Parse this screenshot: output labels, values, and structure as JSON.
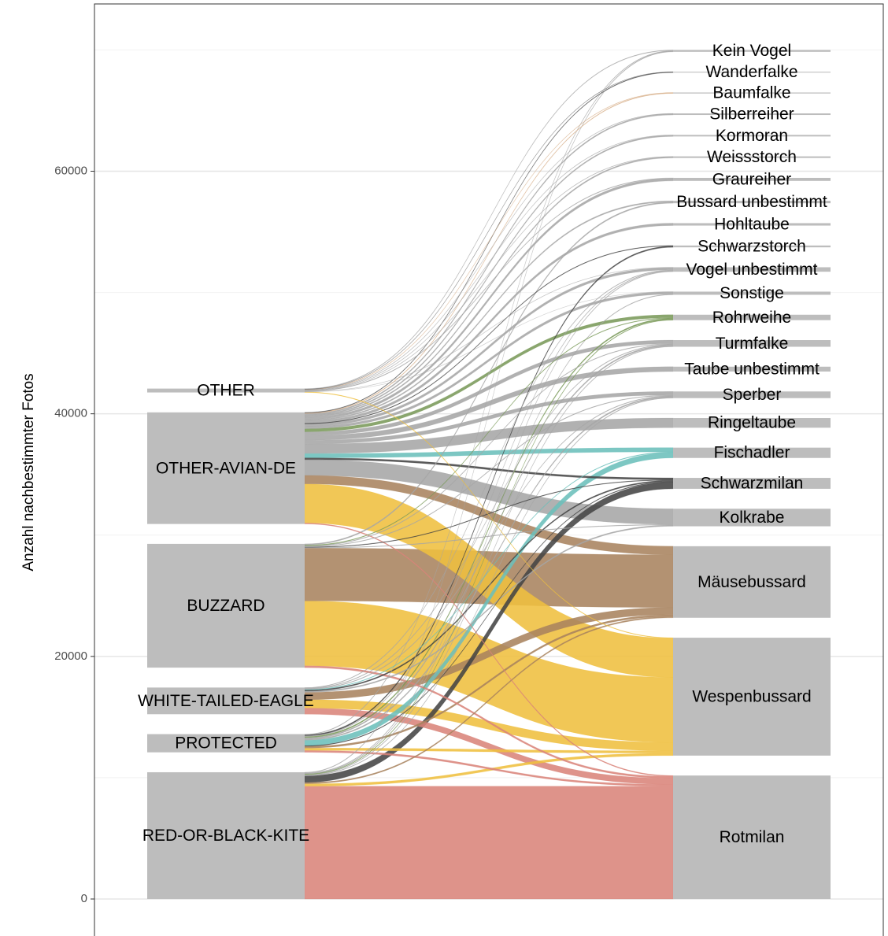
{
  "chart_data": {
    "type": "alluvial",
    "y_axis_label": "Anzahl nachbestimmter Fotos",
    "ylim": [
      -3050,
      73790
    ],
    "yticks": [
      0,
      20000,
      40000,
      60000
    ],
    "yminor": [
      10000,
      30000,
      50000,
      70000
    ],
    "grid": true,
    "node_color": "#bdbdbd",
    "left_nodes": [
      "RED-OR-BLACK-KITE",
      "PROTECTED",
      "WHITE-TAILED-EAGLE",
      "BUZZARD",
      "OTHER-AVIAN-DE",
      "OTHER"
    ],
    "right_nodes": [
      {
        "name": "Rotmilan",
        "color": "#d9847a"
      },
      {
        "name": "Wespenbussard",
        "color": "#efbf3f"
      },
      {
        "name": "Mäusebussard",
        "color": "#a9835f"
      },
      {
        "name": "Kolkrabe",
        "color": "#a6a6a6"
      },
      {
        "name": "Schwarzmilan",
        "color": "#444444"
      },
      {
        "name": "Fischadler",
        "color": "#6bbfbb"
      },
      {
        "name": "Ringeltaube",
        "color": "#a6a6a6"
      },
      {
        "name": "Sperber",
        "color": "#a6a6a6"
      },
      {
        "name": "Taube unbestimmt",
        "color": "#a6a6a6"
      },
      {
        "name": "Turmfalke",
        "color": "#a6a6a6"
      },
      {
        "name": "Rohrweihe",
        "color": "#7a9a5a"
      },
      {
        "name": "Sonstige",
        "color": "#a6a6a6"
      },
      {
        "name": "Vogel unbestimmt",
        "color": "#a6a6a6"
      },
      {
        "name": "Schwarzstorch",
        "color": "#444444"
      },
      {
        "name": "Hohltaube",
        "color": "#a6a6a6"
      },
      {
        "name": "Bussard unbestimmt",
        "color": "#a6a6a6"
      },
      {
        "name": "Graureiher",
        "color": "#a6a6a6"
      },
      {
        "name": "Weissstorch",
        "color": "#a6a6a6"
      },
      {
        "name": "Kormoran",
        "color": "#a6a6a6"
      },
      {
        "name": "Silberreiher",
        "color": "#a6a6a6"
      },
      {
        "name": "Baumfalke",
        "color": "#d8b08a"
      },
      {
        "name": "Wanderfalke",
        "color": "#555555"
      },
      {
        "name": "Kein Vogel",
        "color": "#a6a6a6"
      }
    ],
    "flows": [
      {
        "from": "RED-OR-BLACK-KITE",
        "to": "Rotmilan",
        "value": 9300
      },
      {
        "from": "RED-OR-BLACK-KITE",
        "to": "Schwarzmilan",
        "value": 550
      },
      {
        "from": "RED-OR-BLACK-KITE",
        "to": "Wespenbussard",
        "value": 200
      },
      {
        "from": "RED-OR-BLACK-KITE",
        "to": "Mäusebussard",
        "value": 100
      },
      {
        "from": "RED-OR-BLACK-KITE",
        "to": "Kein Vogel",
        "value": 50
      },
      {
        "from": "RED-OR-BLACK-KITE",
        "to": "Sonstige",
        "value": 50
      },
      {
        "from": "RED-OR-BLACK-KITE",
        "to": "Vogel unbestimmt",
        "value": 50
      },
      {
        "from": "RED-OR-BLACK-KITE",
        "to": "Turmfalke",
        "value": 50
      },
      {
        "from": "RED-OR-BLACK-KITE",
        "to": "Sperber",
        "value": 50
      },
      {
        "from": "RED-OR-BLACK-KITE",
        "to": "Rohrweihe",
        "value": 50
      },
      {
        "from": "PROTECTED",
        "to": "Rotmilan",
        "value": 150
      },
      {
        "from": "PROTECTED",
        "to": "Wespenbussard",
        "value": 200
      },
      {
        "from": "PROTECTED",
        "to": "Mäusebussard",
        "value": 150
      },
      {
        "from": "PROTECTED",
        "to": "Schwarzmilan",
        "value": 50
      },
      {
        "from": "PROTECTED",
        "to": "Fischadler",
        "value": 450
      },
      {
        "from": "PROTECTED",
        "to": "Sperber",
        "value": 100
      },
      {
        "from": "PROTECTED",
        "to": "Rohrweihe",
        "value": 100
      },
      {
        "from": "PROTECTED",
        "to": "Turmfalke",
        "value": 100
      },
      {
        "from": "PROTECTED",
        "to": "Schwarzstorch",
        "value": 100
      },
      {
        "from": "PROTECTED",
        "to": "Kein Vogel",
        "value": 50
      },
      {
        "from": "PROTECTED",
        "to": "Vogel unbestimmt",
        "value": 50
      },
      {
        "from": "WHITE-TAILED-EAGLE",
        "to": "Rotmilan",
        "value": 500
      },
      {
        "from": "WHITE-TAILED-EAGLE",
        "to": "Wespenbussard",
        "value": 700
      },
      {
        "from": "WHITE-TAILED-EAGLE",
        "to": "Mäusebussard",
        "value": 600
      },
      {
        "from": "WHITE-TAILED-EAGLE",
        "to": "Kolkrabe",
        "value": 100
      },
      {
        "from": "WHITE-TAILED-EAGLE",
        "to": "Schwarzmilan",
        "value": 100
      },
      {
        "from": "WHITE-TAILED-EAGLE",
        "to": "Fischadler",
        "value": 50
      },
      {
        "from": "WHITE-TAILED-EAGLE",
        "to": "Sperber",
        "value": 50
      },
      {
        "from": "WHITE-TAILED-EAGLE",
        "to": "Turmfalke",
        "value": 50
      },
      {
        "from": "WHITE-TAILED-EAGLE",
        "to": "Vogel unbestimmt",
        "value": 50
      },
      {
        "from": "BUZZARD",
        "to": "Rotmilan",
        "value": 150
      },
      {
        "from": "BUZZARD",
        "to": "Wespenbussard",
        "value": 5350
      },
      {
        "from": "BUZZARD",
        "to": "Mäusebussard",
        "value": 4350
      },
      {
        "from": "BUZZARD",
        "to": "Schwarzmilan",
        "value": 50
      },
      {
        "from": "BUZZARD",
        "to": "Kolkrabe",
        "value": 50
      },
      {
        "from": "BUZZARD",
        "to": "Sperber",
        "value": 50
      },
      {
        "from": "BUZZARD",
        "to": "Bussard unbestimmt",
        "value": 100
      },
      {
        "from": "BUZZARD",
        "to": "Turmfalke",
        "value": 50
      },
      {
        "from": "BUZZARD",
        "to": "Rohrweihe",
        "value": 50
      },
      {
        "from": "OTHER-AVIAN-DE",
        "to": "Rotmilan",
        "value": 80
      },
      {
        "from": "OTHER-AVIAN-DE",
        "to": "Wespenbussard",
        "value": 3220
      },
      {
        "from": "OTHER-AVIAN-DE",
        "to": "Mäusebussard",
        "value": 700
      },
      {
        "from": "OTHER-AVIAN-DE",
        "to": "Kolkrabe",
        "value": 1300
      },
      {
        "from": "OTHER-AVIAN-DE",
        "to": "Schwarzmilan",
        "value": 150
      },
      {
        "from": "OTHER-AVIAN-DE",
        "to": "Fischadler",
        "value": 350
      },
      {
        "from": "OTHER-AVIAN-DE",
        "to": "Ringeltaube",
        "value": 800
      },
      {
        "from": "OTHER-AVIAN-DE",
        "to": "Sperber",
        "value": 300
      },
      {
        "from": "OTHER-AVIAN-DE",
        "to": "Taube unbestimmt",
        "value": 400
      },
      {
        "from": "OTHER-AVIAN-DE",
        "to": "Turmfalke",
        "value": 300
      },
      {
        "from": "OTHER-AVIAN-DE",
        "to": "Rohrweihe",
        "value": 250
      },
      {
        "from": "OTHER-AVIAN-DE",
        "to": "Sonstige",
        "value": 200
      },
      {
        "from": "OTHER-AVIAN-DE",
        "to": "Vogel unbestimmt",
        "value": 200
      },
      {
        "from": "OTHER-AVIAN-DE",
        "to": "Hohltaube",
        "value": 200
      },
      {
        "from": "OTHER-AVIAN-DE",
        "to": "Graureiher",
        "value": 200
      },
      {
        "from": "OTHER-AVIAN-DE",
        "to": "Bussard unbestimmt",
        "value": 100
      },
      {
        "from": "OTHER-AVIAN-DE",
        "to": "Weissstorch",
        "value": 100
      },
      {
        "from": "OTHER-AVIAN-DE",
        "to": "Kormoran",
        "value": 100
      },
      {
        "from": "OTHER-AVIAN-DE",
        "to": "Silberreiher",
        "value": 100
      },
      {
        "from": "OTHER-AVIAN-DE",
        "to": "Baumfalke",
        "value": 50
      },
      {
        "from": "OTHER-AVIAN-DE",
        "to": "Wanderfalke",
        "value": 50
      },
      {
        "from": "OTHER-AVIAN-DE",
        "to": "Schwarzstorch",
        "value": 50
      },
      {
        "from": "OTHER",
        "to": "Kein Vogel",
        "value": 50
      },
      {
        "from": "OTHER",
        "to": "Baumfalke",
        "value": 30
      },
      {
        "from": "OTHER",
        "to": "Wanderfalke",
        "value": 20
      },
      {
        "from": "OTHER",
        "to": "Silberreiher",
        "value": 30
      },
      {
        "from": "OTHER",
        "to": "Kormoran",
        "value": 30
      },
      {
        "from": "OTHER",
        "to": "Weissstorch",
        "value": 30
      },
      {
        "from": "OTHER",
        "to": "Graureiher",
        "value": 50
      },
      {
        "from": "OTHER",
        "to": "Sonstige",
        "value": 10
      },
      {
        "from": "OTHER",
        "to": "Vogel unbestimmt",
        "value": 20
      },
      {
        "from": "OTHER",
        "to": "Wespenbussard",
        "value": 50
      }
    ]
  }
}
